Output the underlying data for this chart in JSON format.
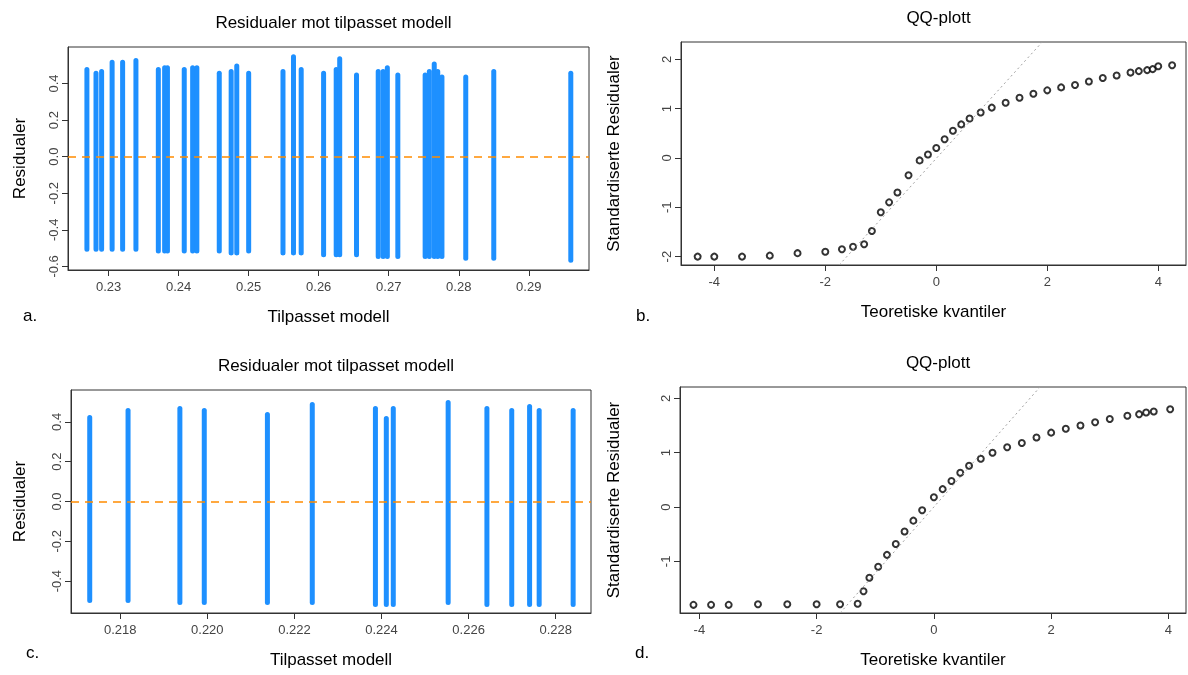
{
  "chart_data": [
    {
      "type": "bar",
      "title": "Residualer mot tilpasset modell",
      "xlabel": "Tilpasset modell",
      "ylabel": "Residualer",
      "annotations": [
        "a."
      ],
      "x": [
        0.2269,
        0.2282,
        0.229,
        0.2305,
        0.232,
        0.2339,
        0.2371,
        0.238,
        0.2384,
        0.2408,
        0.242,
        0.2426,
        0.2458,
        0.2475,
        0.2483,
        0.25,
        0.2549,
        0.2564,
        0.2575,
        0.2607,
        0.2625,
        0.263,
        0.2654,
        0.2685,
        0.2692,
        0.2698,
        0.2713,
        0.2752,
        0.2758,
        0.2765,
        0.277,
        0.2776,
        0.281,
        0.285,
        0.296
      ],
      "base": [
        -0.52,
        -0.52,
        -0.52,
        -0.52,
        -0.52,
        -0.52,
        -0.53,
        -0.53,
        -0.53,
        -0.53,
        -0.53,
        -0.53,
        -0.53,
        -0.54,
        -0.54,
        -0.53,
        -0.54,
        -0.54,
        -0.54,
        -0.55,
        -0.55,
        -0.55,
        -0.55,
        -0.56,
        -0.56,
        -0.56,
        -0.56,
        -0.56,
        -0.56,
        -0.56,
        -0.56,
        -0.56,
        -0.57,
        -0.57,
        -0.58
      ],
      "values": [
        1.01,
        0.99,
        1.0,
        1.05,
        1.05,
        1.06,
        1.02,
        1.03,
        1.03,
        1.02,
        1.03,
        1.03,
        1.0,
        1.02,
        1.05,
        1.0,
        1.02,
        1.1,
        1.03,
        1.02,
        1.04,
        1.1,
        1.01,
        1.04,
        1.04,
        1.06,
        1.02,
        1.02,
        1.04,
        1.08,
        1.04,
        1.01,
        1.02,
        1.05,
        1.05
      ],
      "color": "#1e90ff",
      "xlim": [
        0.2242,
        0.2986
      ],
      "ylim": [
        -0.62,
        0.6
      ],
      "xticks": [
        0.23,
        0.24,
        0.25,
        0.26,
        0.27,
        0.28,
        0.29
      ],
      "yticks": [
        -0.6,
        -0.4,
        -0.2,
        {
          "value": 0,
          "label": "0.0"
        },
        0.2,
        0.4
      ],
      "ref_lines": [
        {
          "axis": "y",
          "value": 0,
          "color": "#ff8c00",
          "line_style": "dashed"
        }
      ]
    },
    {
      "type": "scatter",
      "title": "QQ-plott",
      "xlabel": "Teoretiske kvantiler",
      "ylabel": "Standardiserte Residualer",
      "annotations": [
        "b."
      ],
      "marker": "circle",
      "series": [
        {
          "color": "#000000",
          "x": [
            -4.3,
            -4.0,
            -3.5,
            -3.0,
            -2.5,
            -2.0,
            -1.7,
            -1.5,
            -1.3,
            -1.16,
            -1.0,
            -0.85,
            -0.7,
            -0.5,
            -0.3,
            -0.15,
            0,
            0.15,
            0.3,
            0.45,
            0.6,
            0.8,
            1.0,
            1.25,
            1.5,
            1.75,
            2.0,
            2.25,
            2.5,
            2.75,
            3.0,
            3.25,
            3.5,
            3.65,
            3.8,
            3.9,
            4.0,
            4.25
          ],
          "values": [
            -2.0,
            -2.0,
            -2.0,
            -1.98,
            -1.93,
            -1.9,
            -1.85,
            -1.8,
            -1.75,
            -1.48,
            -1.1,
            -0.9,
            -0.7,
            -0.35,
            -0.05,
            0.07,
            0.2,
            0.38,
            0.55,
            0.68,
            0.8,
            0.92,
            1.02,
            1.12,
            1.22,
            1.3,
            1.37,
            1.43,
            1.48,
            1.55,
            1.62,
            1.67,
            1.73,
            1.76,
            1.78,
            1.8,
            1.86,
            1.88
          ]
        },
        {
          "type": "line",
          "marker": "none",
          "color": "#a0a0a0",
          "line_style": "dotted",
          "x": [
            -1.75,
            1.91
          ],
          "values": [
            -2.17,
            2.35
          ]
        }
      ],
      "xlim": [
        -4.6,
        4.5
      ],
      "ylim": [
        -2.17,
        2.35
      ],
      "xticks": [
        -4,
        -2,
        0,
        2,
        4
      ],
      "yticks": [
        -2,
        -1,
        0,
        1,
        2
      ]
    },
    {
      "type": "bar",
      "title": "Residualer mot tilpasset modell",
      "xlabel": "Tilpasset modell",
      "ylabel": "Residualer",
      "annotations": [
        "c."
      ],
      "x": [
        0.2173,
        0.21818,
        0.21937,
        0.21993,
        0.22138,
        0.22241,
        0.22386,
        0.22411,
        0.22427,
        0.22553,
        0.22642,
        0.22699,
        0.2274,
        0.22762,
        0.2284
      ],
      "base": [
        -0.51,
        -0.51,
        -0.52,
        -0.52,
        -0.52,
        -0.52,
        -0.53,
        -0.53,
        -0.53,
        -0.52,
        -0.53,
        -0.53,
        -0.53,
        -0.53,
        -0.53
      ],
      "values": [
        0.945,
        0.98,
        1.0,
        0.99,
        0.97,
        1.02,
        1.01,
        0.96,
        1.01,
        1.03,
        1.01,
        1.0,
        1.02,
        1.0,
        1.0
      ],
      "color": "#1e90ff",
      "xlim": [
        0.21687,
        0.22881
      ],
      "ylim": [
        -0.56,
        0.56
      ],
      "xticks": [
        0.218,
        {
          "value": 0.22,
          "label": "0.220"
        },
        0.222,
        0.224,
        0.226,
        0.228
      ],
      "yticks": [
        -0.4,
        -0.2,
        {
          "value": 0,
          "label": "0.0"
        },
        0.2,
        0.4
      ],
      "ref_lines": [
        {
          "axis": "y",
          "value": 0,
          "color": "#ff8c00",
          "line_style": "dashed"
        }
      ]
    },
    {
      "type": "scatter",
      "title": "QQ-plott",
      "xlabel": "Teoretiske kvantiler",
      "ylabel": "Standardiserte Residualer",
      "annotations": [
        "d."
      ],
      "marker": "circle",
      "series": [
        {
          "color": "#000000",
          "x": [
            -4.1,
            -3.8,
            -3.5,
            -3.0,
            -2.5,
            -2.0,
            -1.6,
            -1.3,
            -1.2,
            -1.1,
            -0.95,
            -0.8,
            -0.65,
            -0.5,
            -0.35,
            -0.2,
            0,
            0.15,
            0.3,
            0.45,
            0.6,
            0.8,
            1.0,
            1.25,
            1.5,
            1.75,
            2.0,
            2.25,
            2.5,
            2.75,
            3.0,
            3.3,
            3.5,
            3.62,
            3.75,
            4.03
          ],
          "values": [
            -1.8,
            -1.8,
            -1.8,
            -1.79,
            -1.79,
            -1.79,
            -1.79,
            -1.78,
            -1.55,
            -1.3,
            -1.1,
            -0.88,
            -0.68,
            -0.45,
            -0.25,
            -0.06,
            0.18,
            0.33,
            0.48,
            0.63,
            0.76,
            0.89,
            1.0,
            1.1,
            1.18,
            1.28,
            1.37,
            1.44,
            1.5,
            1.56,
            1.62,
            1.68,
            1.71,
            1.74,
            1.76,
            1.8
          ]
        },
        {
          "type": "line",
          "marker": "none",
          "color": "#a0a0a0",
          "line_style": "dotted",
          "x": [
            -1.6,
            1.81
          ],
          "values": [
            -1.95,
            2.21
          ]
        }
      ],
      "xlim": [
        -4.33,
        4.3
      ],
      "ylim": [
        -1.95,
        2.21
      ],
      "xticks": [
        -4,
        -2,
        0,
        2,
        4
      ],
      "yticks": [
        -1,
        0,
        1,
        2
      ]
    }
  ]
}
